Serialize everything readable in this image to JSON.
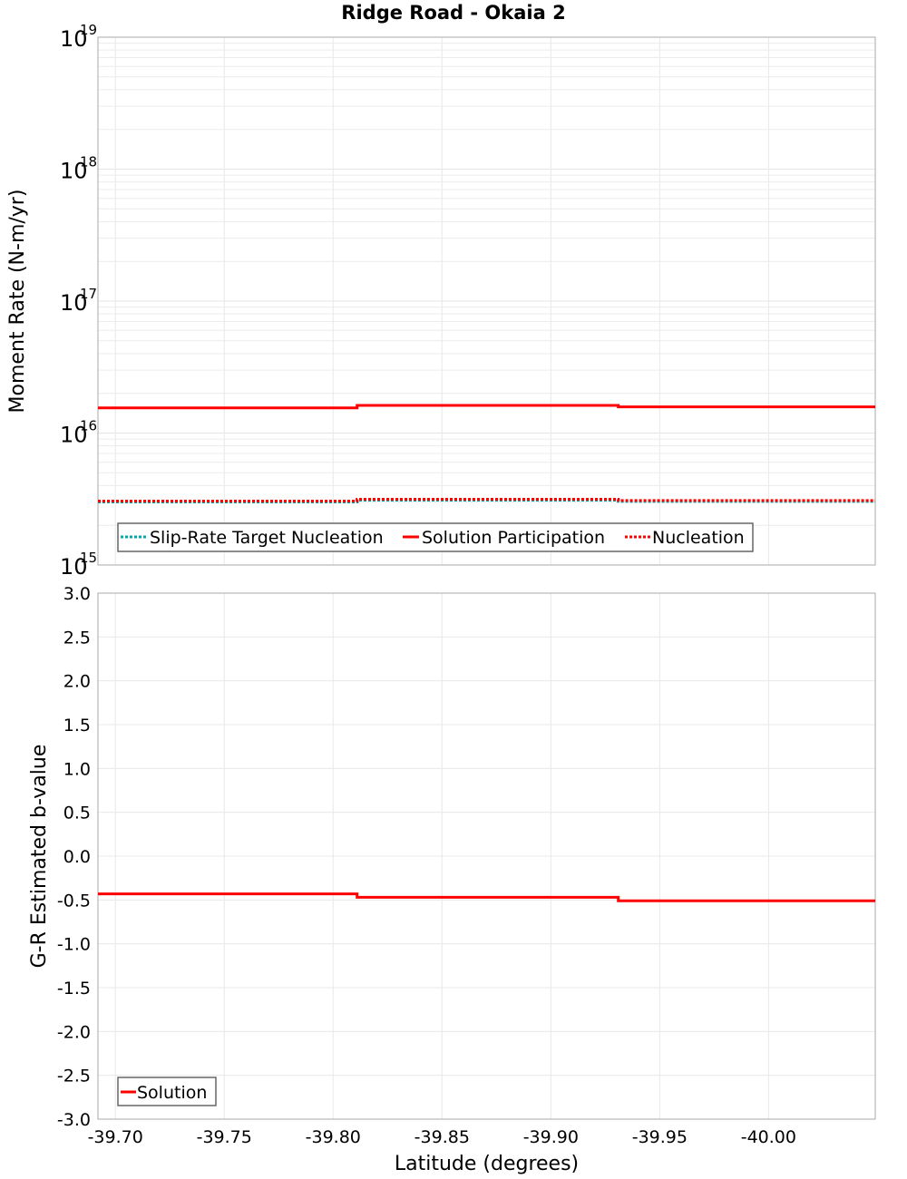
{
  "chart_data": [
    {
      "type": "line",
      "title": "Ridge Road - Okaia 2",
      "xlabel": "Latitude (degrees)",
      "ylabel": "Moment Rate (N-m/yr)",
      "yscale": "log",
      "ylim": [
        1000000000000000.0,
        1e+19
      ],
      "xlim": [
        -39.692,
        -40.049
      ],
      "y_tick_labels": [
        "10^15",
        "10^16",
        "10^17",
        "10^18",
        "10^19"
      ],
      "grid": true,
      "legend_position": "lower-left",
      "series": [
        {
          "name": "Slip-Rate Target Nucleation",
          "color": "#00aaaa",
          "style": "dotted",
          "x": [
            -39.692,
            -39.811,
            -39.811,
            -39.931,
            -39.931,
            -40.049
          ],
          "values": [
            3050000000000000.0,
            3050000000000000.0,
            3150000000000000.0,
            3150000000000000.0,
            3080000000000000.0,
            3080000000000000.0
          ]
        },
        {
          "name": "Solution Participation",
          "color": "#ff0000",
          "style": "solid",
          "x": [
            -39.692,
            -39.811,
            -39.811,
            -39.931,
            -39.931,
            -40.049
          ],
          "values": [
            1.55e+16,
            1.55e+16,
            1.62e+16,
            1.62e+16,
            1.58e+16,
            1.58e+16
          ]
        },
        {
          "name": "Nucleation",
          "color": "#ff0000",
          "style": "dotted",
          "x": [
            -39.692,
            -39.811,
            -39.811,
            -39.931,
            -39.931,
            -40.049
          ],
          "values": [
            3050000000000000.0,
            3050000000000000.0,
            3150000000000000.0,
            3150000000000000.0,
            3080000000000000.0,
            3080000000000000.0
          ]
        }
      ]
    },
    {
      "type": "line",
      "title": "",
      "xlabel": "Latitude (degrees)",
      "ylabel": "G-R Estimated b-value",
      "ylim": [
        -3.0,
        3.0
      ],
      "xlim": [
        -39.692,
        -40.049
      ],
      "y_ticks": [
        3.0,
        2.5,
        2.0,
        1.5,
        1.0,
        0.5,
        0.0,
        -0.5,
        -1.0,
        -1.5,
        -2.0,
        -2.5,
        -3.0
      ],
      "x_ticks": [
        -39.7,
        -39.75,
        -39.8,
        -39.85,
        -39.9,
        -39.95,
        -40.0
      ],
      "x_tick_labels": [
        "-39.70",
        "-39.75",
        "-39.80",
        "-39.85",
        "-39.90",
        "-39.95",
        "-40.00"
      ],
      "grid": true,
      "legend_position": "lower-left",
      "series": [
        {
          "name": "Solution",
          "color": "#ff0000",
          "style": "solid",
          "x": [
            -39.692,
            -39.811,
            -39.811,
            -39.931,
            -39.931,
            -40.049
          ],
          "values": [
            -0.43,
            -0.43,
            -0.47,
            -0.47,
            -0.51,
            -0.51
          ]
        }
      ]
    }
  ]
}
